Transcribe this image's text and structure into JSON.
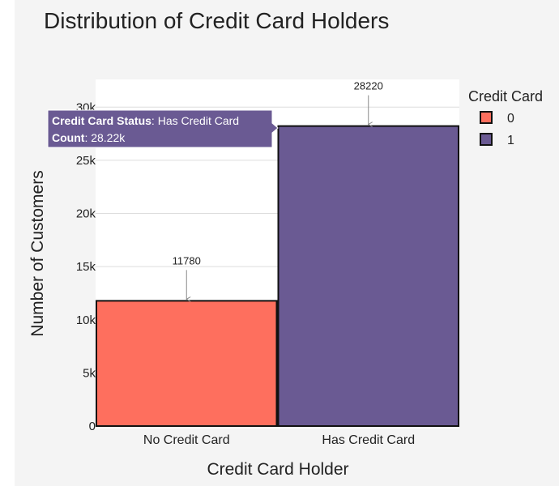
{
  "chart_data": {
    "type": "bar",
    "title": "Distribution of Credit Card Holders",
    "xlabel": "Credit Card Holder",
    "ylabel": "Number of Customers",
    "categories": [
      "No Credit Card",
      "Has Credit Card"
    ],
    "values": [
      11780,
      28220
    ],
    "data_labels": [
      "11780",
      "28220"
    ],
    "series": [
      {
        "name": "0",
        "category": "No Credit Card",
        "value": 11780,
        "color": "#fe6f5e"
      },
      {
        "name": "1",
        "category": "Has Credit Card",
        "value": 28220,
        "color": "#6a5a93"
      }
    ],
    "ylim": [
      0,
      32500
    ],
    "yticks": [
      {
        "value": 0,
        "label": "0"
      },
      {
        "value": 5000,
        "label": "5k"
      },
      {
        "value": 10000,
        "label": "10k"
      },
      {
        "value": 15000,
        "label": "15k"
      },
      {
        "value": 20000,
        "label": "20k"
      },
      {
        "value": 25000,
        "label": "25k"
      },
      {
        "value": 30000,
        "label": "30k"
      }
    ],
    "grid": true,
    "legend": {
      "title": "Credit Card",
      "placement": "right",
      "entries": [
        "0",
        "1"
      ]
    },
    "tooltip": {
      "category_key": "Credit Card Status",
      "category_value": "Has Credit Card",
      "count_key": "Count",
      "count_value": "28.22k",
      "color": "#6a5a93"
    }
  }
}
